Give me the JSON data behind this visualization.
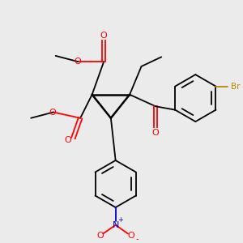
{
  "background_color": "#ebebeb",
  "bond_color": "#000000",
  "oxygen_color": "#ff0000",
  "nitrogen_color": "#0000cd",
  "bromine_color": "#b8860b",
  "figsize": [
    3.0,
    3.0
  ],
  "dpi": 100,
  "xlim": [
    0,
    10
  ],
  "ylim": [
    0,
    10
  ]
}
